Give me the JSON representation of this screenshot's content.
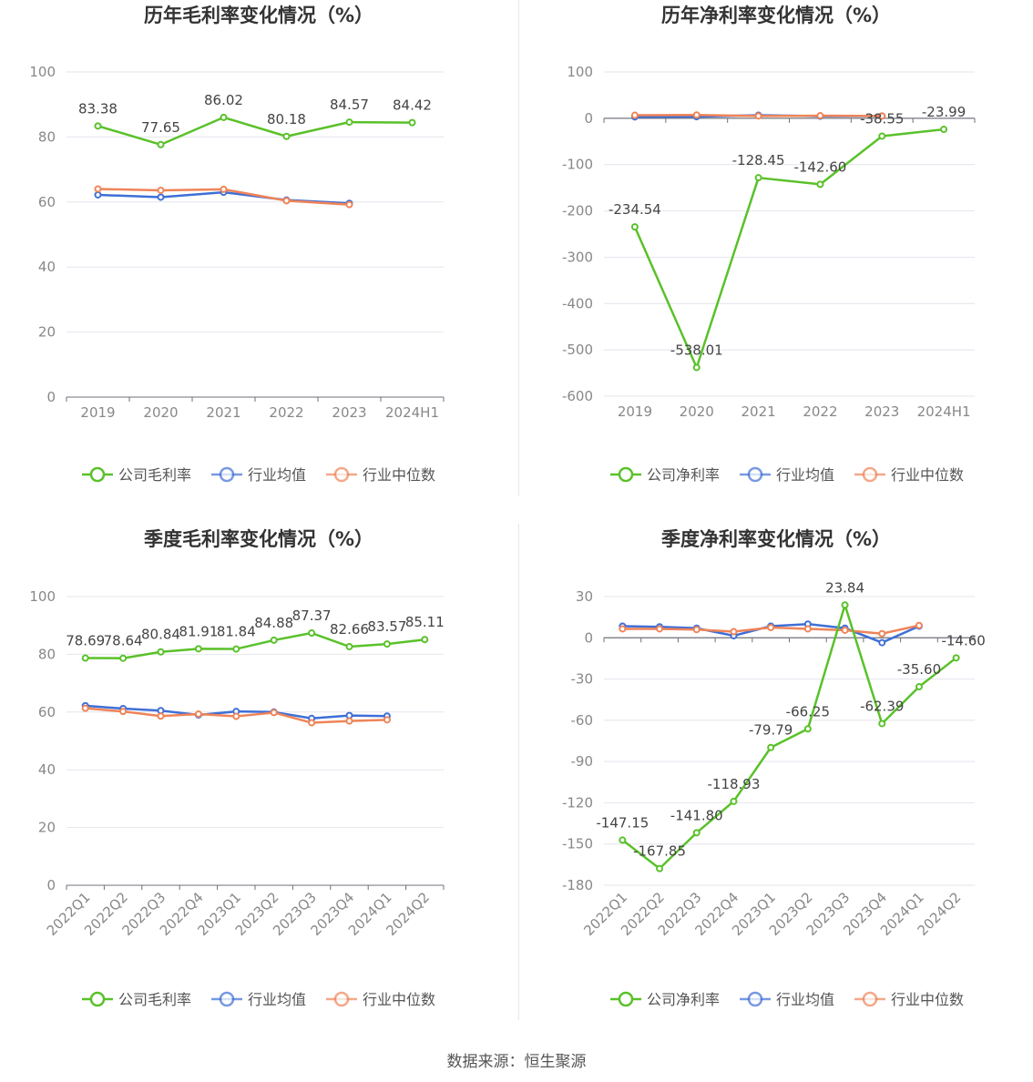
{
  "footer": "数据来源：恒生聚源",
  "colors": {
    "company": "#5ac12a",
    "avg": "#3f6fd6",
    "median": "#ef8458",
    "axis": "#888888",
    "grid": "#e4e4ee"
  },
  "chart_data": [
    {
      "type": "line",
      "title": "历年毛利率变化情况（%）",
      "categories": [
        "2019",
        "2020",
        "2021",
        "2022",
        "2023",
        "2024H1"
      ],
      "ylim": [
        0,
        100
      ],
      "yticks": [
        0,
        20,
        40,
        60,
        80,
        100
      ],
      "grid": true,
      "legend_position": "bottom",
      "series": [
        {
          "name": "公司毛利率",
          "values": [
            83.38,
            77.65,
            86.02,
            80.18,
            84.57,
            84.42
          ],
          "labels": [
            "83.38",
            "77.65",
            "86.02",
            "80.18",
            "84.57",
            "84.42"
          ]
        },
        {
          "name": "行业均值",
          "values": [
            62.2,
            61.5,
            63.0,
            60.6,
            59.6,
            null
          ]
        },
        {
          "name": "行业中位数",
          "values": [
            64.0,
            63.6,
            63.9,
            60.4,
            59.2,
            null
          ]
        }
      ]
    },
    {
      "type": "line",
      "title": "历年净利率变化情况（%）",
      "categories": [
        "2019",
        "2020",
        "2021",
        "2022",
        "2023",
        "2024H1"
      ],
      "ylim": [
        -600,
        100
      ],
      "yticks": [
        -600,
        -500,
        -400,
        -300,
        -200,
        -100,
        0,
        100
      ],
      "grid": true,
      "legend_position": "bottom",
      "series": [
        {
          "name": "公司净利率",
          "values": [
            -234.54,
            -538.01,
            -128.45,
            -142.6,
            -38.55,
            -23.99
          ],
          "labels": [
            "-234.54",
            "-538.01",
            "-128.45",
            "-142.60",
            "-38.55",
            "-23.99"
          ]
        },
        {
          "name": "行业均值",
          "values": [
            3.0,
            3.5,
            6.5,
            4.5,
            5.0,
            null
          ]
        },
        {
          "name": "行业中位数",
          "values": [
            6.5,
            7.0,
            5.0,
            5.5,
            5.0,
            null
          ]
        }
      ]
    },
    {
      "type": "line",
      "title": "季度毛利率变化情况（%）",
      "categories": [
        "2022Q1",
        "2022Q2",
        "2022Q3",
        "2022Q4",
        "2023Q1",
        "2023Q2",
        "2023Q3",
        "2023Q4",
        "2024Q1",
        "2024Q2"
      ],
      "ylim": [
        0,
        100
      ],
      "yticks": [
        0,
        20,
        40,
        60,
        80,
        100
      ],
      "grid": true,
      "legend_position": "bottom",
      "series": [
        {
          "name": "公司毛利率",
          "values": [
            78.69,
            78.64,
            80.84,
            81.91,
            81.84,
            84.88,
            87.37,
            82.66,
            83.57,
            85.11
          ],
          "labels": [
            "78.69",
            "78.64",
            "80.84",
            "81.91",
            "81.84",
            "84.88",
            "87.37",
            "82.66",
            "83.57",
            "85.11"
          ]
        },
        {
          "name": "行业均值",
          "values": [
            62.2,
            61.2,
            60.5,
            59.0,
            60.2,
            60.0,
            57.8,
            58.8,
            58.6,
            null
          ]
        },
        {
          "name": "行业中位数",
          "values": [
            61.3,
            60.2,
            58.6,
            59.3,
            58.5,
            59.8,
            56.3,
            56.9,
            57.3,
            null
          ]
        }
      ]
    },
    {
      "type": "line",
      "title": "季度净利率变化情况（%）",
      "categories": [
        "2022Q1",
        "2022Q2",
        "2022Q3",
        "2022Q4",
        "2023Q1",
        "2023Q2",
        "2023Q3",
        "2023Q4",
        "2024Q1",
        "2024Q2"
      ],
      "ylim": [
        -180,
        30
      ],
      "yticks": [
        -180,
        -150,
        -120,
        -90,
        -60,
        -30,
        0,
        30
      ],
      "grid": true,
      "legend_position": "bottom",
      "series": [
        {
          "name": "公司净利率",
          "values": [
            -147.15,
            -167.85,
            -141.8,
            -118.93,
            -79.79,
            -66.25,
            23.84,
            -62.39,
            -35.6,
            -14.6
          ],
          "labels": [
            "-147.15",
            "-167.85",
            "-141.80",
            "-118.93",
            "-79.79",
            "-66.25",
            "23.84",
            "-62.39",
            "-35.60",
            "-14.60"
          ]
        },
        {
          "name": "行业均值",
          "values": [
            8.5,
            8.0,
            7.0,
            1.5,
            8.5,
            10.0,
            7.0,
            -3.5,
            8.5,
            null
          ]
        },
        {
          "name": "行业中位数",
          "values": [
            6.5,
            6.5,
            6.0,
            4.5,
            7.5,
            6.5,
            5.5,
            3.0,
            9.0,
            null
          ]
        }
      ]
    }
  ]
}
